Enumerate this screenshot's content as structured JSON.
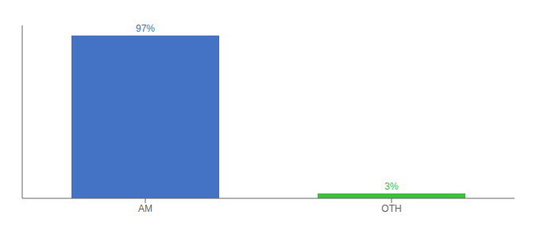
{
  "chart_data": {
    "type": "bar",
    "categories": [
      "AM",
      "OTH"
    ],
    "values": [
      97,
      3
    ],
    "value_labels": [
      "97%",
      "3%"
    ],
    "colors": [
      "#4472c4",
      "#3dbf3d"
    ],
    "ylim": [
      0,
      103
    ],
    "data_labels": true,
    "tick_labels": "x",
    "grid": false
  }
}
